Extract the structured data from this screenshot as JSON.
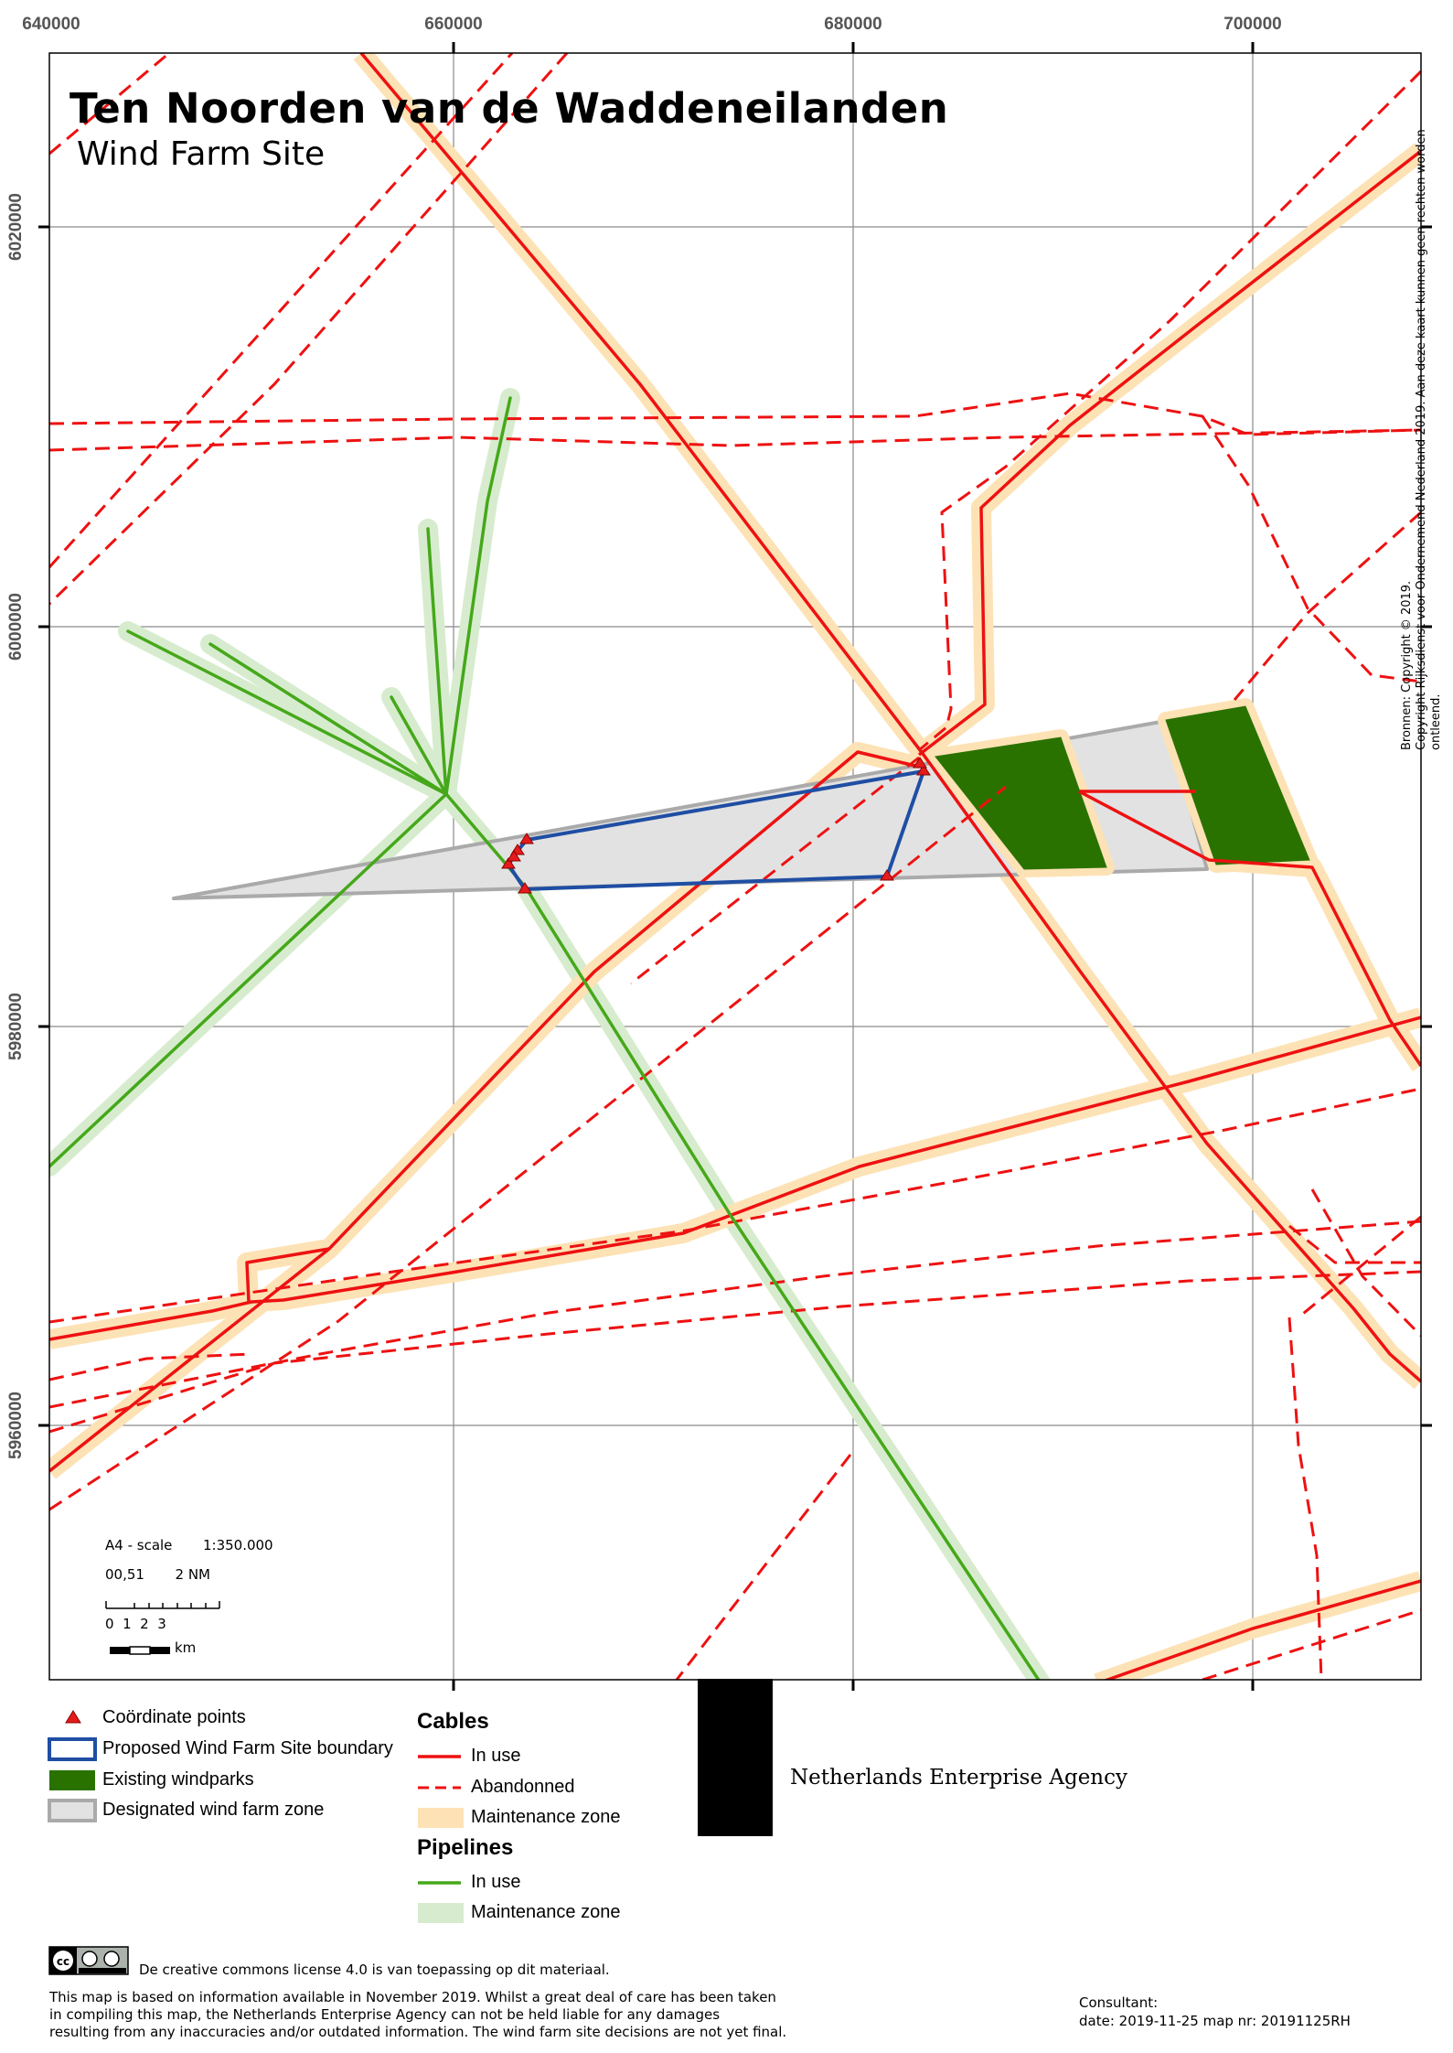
{
  "map": {
    "title": "Ten Noorden van de Waddeneilanden",
    "subtitle": "Wind Farm Site",
    "x_ticks": [
      "640000",
      "660000",
      "680000",
      "700000"
    ],
    "y_ticks": [
      "6020000",
      "6000000",
      "5980000",
      "5960000"
    ],
    "copyright_line1": "Bronnen: Copyright © 2019.",
    "copyright_line2": "Copyright Rijksdienst voor Ondernemend Nederland 2019. Aan deze kaart kunnen geen rechten worden ontleend."
  },
  "scale": {
    "scale_label": "A4 - scale",
    "scale_value": "1:350.000",
    "nm_label_left": "00,51",
    "nm_label_right": "2 NM",
    "km_ticks": "0  1  2  3",
    "km_unit": "km"
  },
  "legend": {
    "coordinate_points": "Coördinate points",
    "proposed_boundary": "Proposed Wind Farm Site boundary",
    "existing_windparks": "Existing windparks",
    "designated_zone": "Designated wind farm zone",
    "cables_title": "Cables",
    "cables_in_use": "In use",
    "cables_abandoned": "Abandonned",
    "cables_maintenance": "Maintenance zone",
    "pipelines_title": "Pipelines",
    "pipelines_in_use": "In use",
    "pipelines_maintenance": "Maintenance zone"
  },
  "agency": {
    "name": "Netherlands Enterprise Agency"
  },
  "footer": {
    "license": "De creative commons license 4.0 is van toepassing op dit materiaal.",
    "disclaimer_1": "This map is based on information available in November 2019. Whilst a great deal of care has been taken",
    "disclaimer_2": "in compiling this map, the Netherlands Enterprise Agency can not be held liable for any damages",
    "disclaimer_3": "resulting from any inaccuracies and/or outdated information. The wind farm site decisions are not yet final.",
    "consultant_label": "Consultant:",
    "date_line": "date: 2019-11-25 map nr: 20191125RH"
  },
  "colors": {
    "cable": "#ee1111",
    "cable_zone": "#fde2b5",
    "pipeline": "#45a81a",
    "pipeline_zone": "#d7ecce",
    "boundary": "#1f4ea3",
    "windpark": "#2a7200",
    "zone_fill": "#e2e2e2"
  }
}
